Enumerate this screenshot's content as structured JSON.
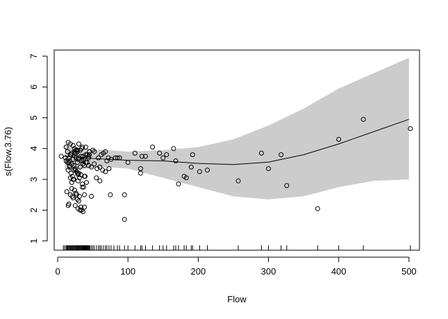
{
  "chart_data": {
    "type": "scatter",
    "title": "",
    "xlabel": "Flow",
    "ylabel": "s(Flow,3.76)",
    "xlim": [
      -5,
      515
    ],
    "ylim": [
      0.7,
      7.2
    ],
    "x_ticks": [
      0,
      100,
      200,
      300,
      400,
      500
    ],
    "y_ticks": [
      1,
      2,
      3,
      4,
      5,
      6,
      7
    ],
    "grid": false,
    "legend": "none",
    "colors": {
      "band": "#cccccc",
      "line": "#000000",
      "points": "#000000"
    },
    "confidence_band": {
      "x": [
        10,
        40,
        70,
        100,
        150,
        200,
        250,
        300,
        350,
        400,
        450,
        500
      ],
      "lower": [
        3.3,
        3.35,
        3.4,
        3.35,
        3.05,
        2.75,
        2.45,
        2.35,
        2.45,
        2.75,
        2.95,
        3.0
      ],
      "upper": [
        4.1,
        4.0,
        3.95,
        3.9,
        3.95,
        4.05,
        4.3,
        4.75,
        5.3,
        5.95,
        6.45,
        6.95
      ]
    },
    "smooth": {
      "x": [
        10,
        50,
        100,
        150,
        200,
        250,
        300,
        350,
        400,
        450,
        500
      ],
      "y": [
        3.75,
        3.68,
        3.62,
        3.6,
        3.52,
        3.48,
        3.56,
        3.8,
        4.15,
        4.55,
        4.95
      ]
    },
    "points": {
      "x": [
        5,
        12,
        14,
        16,
        18,
        20,
        22,
        24,
        26,
        28,
        30,
        32,
        34,
        36,
        38,
        40,
        42,
        44,
        15,
        17,
        19,
        21,
        23,
        25,
        27,
        29,
        31,
        33,
        35,
        37,
        39,
        41,
        13,
        18,
        22,
        26,
        30,
        34,
        38,
        20,
        24,
        28,
        32,
        36,
        16,
        21,
        25,
        29,
        33,
        12,
        15,
        18,
        22,
        26,
        30,
        35,
        40,
        45,
        50,
        14,
        17,
        20,
        23,
        26,
        29,
        32,
        36,
        40,
        44,
        48,
        52,
        56,
        60,
        64,
        68,
        19,
        24,
        28,
        34,
        42,
        25,
        30,
        15,
        20,
        35,
        27,
        31,
        22,
        38,
        48,
        55,
        60,
        65,
        70,
        75,
        82,
        88,
        95,
        100,
        110,
        118,
        120,
        125,
        135,
        145,
        150,
        155,
        165,
        168,
        172,
        180,
        183,
        190,
        192,
        202,
        213,
        257,
        290,
        300,
        318,
        326,
        370,
        400,
        435,
        502,
        11,
        16,
        20,
        24,
        28,
        33,
        37,
        45,
        52,
        58,
        17,
        23,
        29,
        36,
        44,
        62,
        68,
        72,
        76,
        85,
        118,
        18,
        28,
        38,
        95,
        73
      ],
      "y": [
        3.75,
        3.6,
        3.9,
        3.7,
        3.8,
        3.5,
        3.65,
        4.0,
        3.85,
        3.55,
        3.7,
        3.95,
        3.6,
        3.75,
        3.45,
        3.8,
        3.55,
        3.7,
        3.3,
        3.4,
        3.2,
        3.1,
        3.0,
        3.35,
        3.25,
        2.95,
        3.05,
        3.15,
        2.85,
        2.75,
        3.1,
        2.9,
        2.6,
        2.5,
        2.4,
        2.55,
        2.3,
        2.0,
        2.1,
        2.7,
        2.65,
        2.35,
        2.0,
        1.95,
        2.2,
        2.45,
        2.15,
        2.05,
        2.1,
        4.05,
        4.2,
        4.15,
        4.1,
        3.95,
        4.15,
        4.05,
        4.05,
        3.9,
        3.95,
        3.55,
        3.6,
        3.5,
        3.45,
        3.7,
        3.65,
        3.4,
        3.5,
        3.55,
        3.45,
        3.4,
        3.5,
        3.35,
        3.4,
        3.3,
        3.25,
        3.8,
        3.85,
        3.9,
        4.0,
        3.8,
        3.3,
        3.2,
        2.15,
        2.9,
        2.75,
        2.5,
        2.45,
        3.0,
        3.1,
        2.45,
        3.05,
        2.95,
        3.85,
        3.6,
        2.5,
        3.7,
        3.7,
        2.5,
        3.55,
        3.85,
        3.2,
        3.75,
        3.75,
        4.05,
        3.85,
        3.7,
        3.8,
        4.0,
        3.6,
        2.85,
        3.1,
        3.05,
        3.4,
        3.8,
        3.25,
        3.3,
        2.95,
        3.85,
        3.35,
        3.8,
        2.8,
        2.05,
        4.3,
        4.95,
        4.65,
        3.7,
        3.55,
        3.85,
        3.9,
        3.95,
        3.75,
        3.65,
        3.8,
        3.9,
        3.7,
        3.45,
        3.3,
        3.15,
        3.6,
        3.75,
        3.8,
        3.9,
        3.7,
        3.65,
        3.7,
        3.35,
        3.05,
        3.2,
        2.5,
        1.7,
        3.35
      ],
      "rug": [
        8,
        10,
        12,
        13,
        14,
        15,
        16,
        17,
        18,
        19,
        20,
        21,
        22,
        23,
        24,
        25,
        26,
        27,
        28,
        29,
        30,
        31,
        32,
        33,
        34,
        35,
        36,
        37,
        38,
        39,
        40,
        41,
        42,
        43,
        44,
        45,
        46,
        48,
        50,
        52,
        55,
        58,
        60,
        62,
        65,
        68,
        70,
        73,
        76,
        80,
        85,
        88,
        95,
        100,
        110,
        118,
        120,
        125,
        135,
        145,
        150,
        155,
        165,
        168,
        172,
        180,
        183,
        190,
        192,
        202,
        213,
        257,
        290,
        300,
        318,
        326,
        370,
        400,
        435,
        502
      ]
    }
  }
}
